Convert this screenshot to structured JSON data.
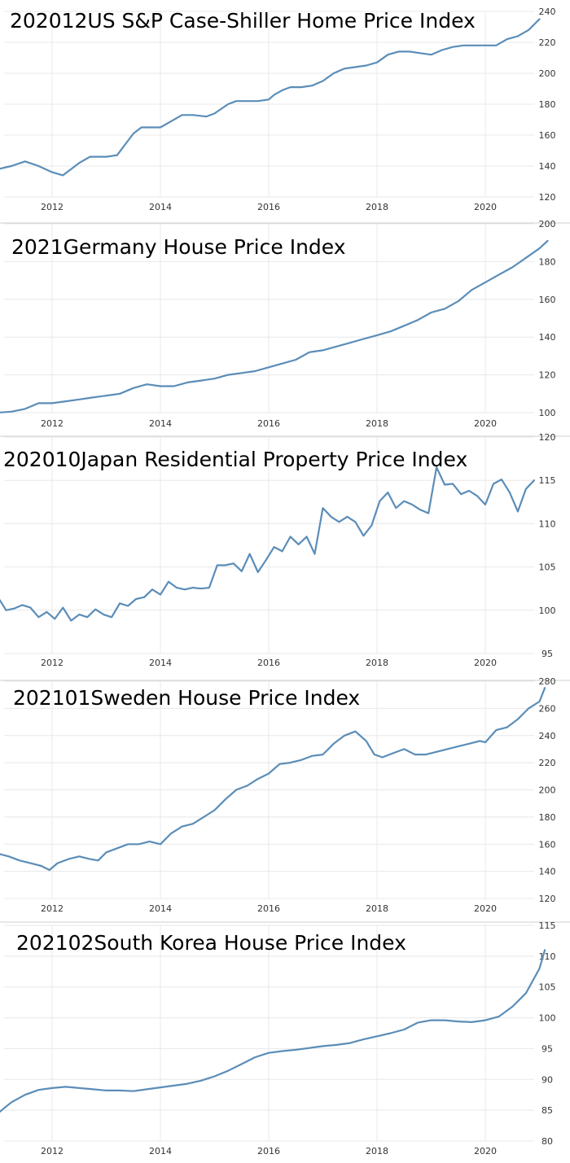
{
  "chart_data": [
    {
      "type": "line",
      "title": "202012US S&P Case-Shiller Home Price Index",
      "ylim": [
        120,
        240
      ],
      "yticks": [
        120,
        140,
        160,
        180,
        200,
        220,
        240
      ],
      "xlim": [
        2011.0,
        2021.25
      ],
      "xticks": [
        2012,
        2014,
        2016,
        2018,
        2020
      ],
      "grid": true,
      "x": [
        2011.0,
        2011.25,
        2011.5,
        2011.75,
        2012.0,
        2012.2,
        2012.5,
        2012.7,
        2012.85,
        2013.0,
        2013.2,
        2013.35,
        2013.5,
        2013.65,
        2013.8,
        2014.0,
        2014.2,
        2014.4,
        2014.6,
        2014.85,
        2015.0,
        2015.25,
        2015.4,
        2015.6,
        2015.8,
        2016.0,
        2016.1,
        2016.25,
        2016.4,
        2016.6,
        2016.8,
        2017.0,
        2017.2,
        2017.4,
        2017.6,
        2017.8,
        2018.0,
        2018.2,
        2018.4,
        2018.6,
        2018.8,
        2019.0,
        2019.2,
        2019.4,
        2019.6,
        2019.8,
        2020.0,
        2020.2,
        2020.4,
        2020.6,
        2020.8,
        2021.0
      ],
      "values": [
        138,
        140,
        143,
        140,
        136,
        134,
        142,
        146,
        146,
        146,
        147,
        154,
        161,
        165,
        165,
        165,
        169,
        173,
        173,
        172,
        174,
        180,
        182,
        182,
        182,
        183,
        186,
        189,
        191,
        191,
        192,
        195,
        200,
        203,
        204,
        205,
        207,
        212,
        214,
        214,
        213,
        212,
        215,
        217,
        218,
        218,
        218,
        218,
        222,
        224,
        228,
        235
      ]
    },
    {
      "type": "line",
      "title": "2021Germany House Price Index",
      "ylim": [
        100,
        200
      ],
      "yticks": [
        100,
        120,
        140,
        160,
        180,
        200
      ],
      "xlim": [
        2011.0,
        2021.25
      ],
      "xticks": [
        2012,
        2014,
        2016,
        2018,
        2020
      ],
      "grid": true,
      "x": [
        2011.0,
        2011.25,
        2011.5,
        2011.75,
        2012.0,
        2012.25,
        2012.5,
        2012.75,
        2013.0,
        2013.25,
        2013.5,
        2013.75,
        2014.0,
        2014.25,
        2014.5,
        2014.75,
        2015.0,
        2015.25,
        2015.5,
        2015.75,
        2016.0,
        2016.25,
        2016.5,
        2016.75,
        2017.0,
        2017.25,
        2017.5,
        2017.75,
        2018.0,
        2018.25,
        2018.5,
        2018.75,
        2019.0,
        2019.25,
        2019.5,
        2019.75,
        2020.0,
        2020.25,
        2020.5,
        2020.75,
        2021.0,
        2021.15
      ],
      "values": [
        100,
        100.5,
        102,
        105,
        105,
        106,
        107,
        108,
        109,
        110,
        113,
        115,
        114,
        114,
        116,
        117,
        118,
        120,
        121,
        122,
        124,
        126,
        128,
        132,
        133,
        135,
        137,
        139,
        141,
        143,
        146,
        149,
        153,
        155,
        159,
        165,
        169,
        173,
        177,
        182,
        187,
        191
      ]
    },
    {
      "type": "line",
      "title": "202010Japan Residential Property Price Index",
      "ylim": [
        95,
        120
      ],
      "yticks": [
        95,
        100,
        105,
        110,
        115,
        120
      ],
      "xlim": [
        2011.0,
        2021.25
      ],
      "xticks": [
        2012,
        2014,
        2016,
        2018,
        2020
      ],
      "grid": true,
      "x": [
        2011.0,
        2011.15,
        2011.3,
        2011.45,
        2011.6,
        2011.75,
        2011.9,
        2012.05,
        2012.2,
        2012.35,
        2012.5,
        2012.65,
        2012.8,
        2012.95,
        2013.1,
        2013.25,
        2013.4,
        2013.55,
        2013.7,
        2013.85,
        2014.0,
        2014.15,
        2014.3,
        2014.45,
        2014.6,
        2014.75,
        2014.9,
        2015.05,
        2015.2,
        2015.35,
        2015.5,
        2015.65,
        2015.8,
        2015.95,
        2016.1,
        2016.25,
        2016.4,
        2016.55,
        2016.7,
        2016.85,
        2017.0,
        2017.15,
        2017.3,
        2017.45,
        2017.6,
        2017.75,
        2017.9,
        2018.05,
        2018.2,
        2018.35,
        2018.5,
        2018.65,
        2018.8,
        2018.95,
        2019.1,
        2019.25,
        2019.4,
        2019.55,
        2019.7,
        2019.85,
        2020.0,
        2020.15,
        2020.3,
        2020.45,
        2020.6,
        2020.75,
        2020.9
      ],
      "values": [
        101.5,
        100,
        100.2,
        100.6,
        100.3,
        99.2,
        99.8,
        99,
        100.3,
        98.8,
        99.5,
        99.2,
        100.1,
        99.5,
        99.2,
        100.8,
        100.5,
        101.3,
        101.5,
        102.4,
        101.8,
        103.3,
        102.6,
        102.4,
        102.6,
        102.5,
        102.6,
        105.2,
        105.2,
        105.4,
        104.5,
        106.5,
        104.4,
        105.8,
        107.3,
        106.8,
        108.5,
        107.6,
        108.5,
        106.5,
        111.8,
        110.8,
        110.2,
        110.8,
        110.2,
        108.6,
        109.8,
        112.6,
        113.6,
        111.8,
        112.6,
        112.2,
        111.6,
        111.2,
        116.5,
        114.5,
        114.6,
        113.4,
        113.8,
        113.2,
        112.2,
        114.6,
        115.1,
        113.6,
        111.4,
        114,
        115
      ]
    },
    {
      "type": "line",
      "title": "202101Sweden House Price Index",
      "ylim": [
        120,
        280
      ],
      "yticks": [
        120,
        140,
        160,
        180,
        200,
        220,
        240,
        260,
        280
      ],
      "xlim": [
        2011.0,
        2021.25
      ],
      "xticks": [
        2012,
        2014,
        2016,
        2018,
        2020
      ],
      "grid": true,
      "x": [
        2011.0,
        2011.2,
        2011.4,
        2011.6,
        2011.8,
        2011.95,
        2012.1,
        2012.3,
        2012.5,
        2012.7,
        2012.85,
        2013.0,
        2013.2,
        2013.4,
        2013.6,
        2013.8,
        2014.0,
        2014.2,
        2014.4,
        2014.6,
        2014.8,
        2015.0,
        2015.2,
        2015.4,
        2015.6,
        2015.8,
        2016.0,
        2016.2,
        2016.4,
        2016.6,
        2016.8,
        2017.0,
        2017.2,
        2017.4,
        2017.6,
        2017.8,
        2017.95,
        2018.1,
        2018.3,
        2018.5,
        2018.7,
        2018.9,
        2019.1,
        2019.3,
        2019.5,
        2019.7,
        2019.9,
        2020.0,
        2020.2,
        2020.4,
        2020.6,
        2020.8,
        2021.0,
        2021.1
      ],
      "values": [
        153,
        151,
        148,
        146,
        144,
        141,
        146,
        149,
        151,
        149,
        148,
        154,
        157,
        160,
        160,
        162,
        160,
        168,
        173,
        175,
        180,
        185,
        193,
        200,
        203,
        208,
        212,
        219,
        220,
        222,
        225,
        226,
        234,
        240,
        243,
        236,
        226,
        224,
        227,
        230,
        226,
        226,
        228,
        230,
        232,
        234,
        236,
        235,
        244,
        246,
        252,
        260,
        265,
        275
      ]
    },
    {
      "type": "line",
      "title": "202102South Korea House Price Index",
      "ylim": [
        80,
        115
      ],
      "yticks": [
        80,
        85,
        90,
        95,
        100,
        105,
        110,
        115
      ],
      "xlim": [
        2011.0,
        2021.25
      ],
      "xticks": [
        2012,
        2014,
        2016,
        2018,
        2020
      ],
      "grid": true,
      "x": [
        2011.0,
        2011.25,
        2011.5,
        2011.75,
        2012.0,
        2012.25,
        2012.5,
        2012.75,
        2013.0,
        2013.25,
        2013.5,
        2013.75,
        2014.0,
        2014.25,
        2014.5,
        2014.75,
        2015.0,
        2015.25,
        2015.5,
        2015.75,
        2016.0,
        2016.25,
        2016.5,
        2016.75,
        2017.0,
        2017.25,
        2017.5,
        2017.75,
        2018.0,
        2018.25,
        2018.5,
        2018.75,
        2019.0,
        2019.25,
        2019.5,
        2019.75,
        2020.0,
        2020.25,
        2020.5,
        2020.75,
        2021.0,
        2021.1
      ],
      "values": [
        84.5,
        86.3,
        87.5,
        88.3,
        88.6,
        88.8,
        88.6,
        88.4,
        88.2,
        88.2,
        88.1,
        88.4,
        88.7,
        89.0,
        89.3,
        89.8,
        90.5,
        91.4,
        92.5,
        93.6,
        94.3,
        94.6,
        94.8,
        95.1,
        95.4,
        95.6,
        95.9,
        96.5,
        97.0,
        97.5,
        98.1,
        99.2,
        99.6,
        99.6,
        99.4,
        99.3,
        99.6,
        100.2,
        101.8,
        104.0,
        108.0,
        111.0
      ]
    }
  ]
}
